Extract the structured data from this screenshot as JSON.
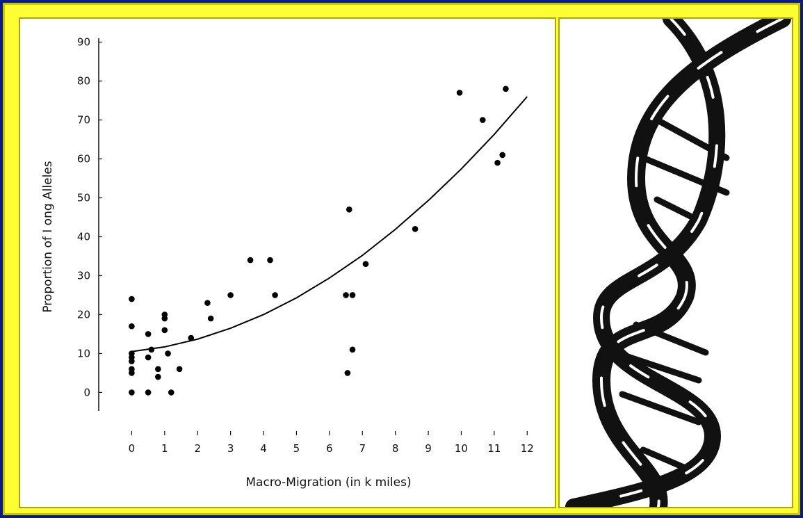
{
  "chart_data": {
    "type": "scatter",
    "xlabel": "Macro-Migration (in k miles)",
    "ylabel": "Proportion of I ong Alleles",
    "xlim": [
      -1,
      12.1
    ],
    "ylim": [
      -11,
      91
    ],
    "xticks": [
      0,
      1,
      2,
      3,
      4,
      5,
      6,
      7,
      8,
      9,
      10,
      11,
      12
    ],
    "yticks": [
      0,
      10,
      20,
      30,
      40,
      50,
      60,
      70,
      80,
      90
    ],
    "series": [
      {
        "type": "scatter",
        "color": "#000000",
        "x": [
          0,
          0,
          0,
          0,
          0,
          0,
          0,
          0,
          0.5,
          0.5,
          0.5,
          0.6,
          0.8,
          0.8,
          1,
          1,
          1,
          1.1,
          1.2,
          1.45,
          1.8,
          2.3,
          2.4,
          3,
          3.6,
          4.2,
          4.35,
          6.5,
          6.6,
          6.55,
          6.7,
          6.7,
          7.1,
          8.6,
          9.95,
          10.65,
          11.1,
          11.25,
          11.35
        ],
        "values": [
          24,
          17,
          10,
          9,
          8,
          6,
          5,
          0,
          15,
          9,
          0,
          11,
          6,
          4,
          20,
          19,
          16,
          10,
          0,
          6,
          14,
          23,
          19,
          25,
          34,
          34,
          25,
          25,
          47,
          5,
          25,
          11,
          33,
          42,
          77,
          70,
          59,
          61,
          78
        ]
      },
      {
        "type": "line",
        "color": "#000000",
        "x": [
          0,
          1,
          2,
          3,
          4,
          5,
          6,
          7,
          8,
          9,
          10,
          11,
          12
        ],
        "values": [
          10.5,
          11.7,
          13.7,
          16.5,
          20.0,
          24.3,
          29.4,
          35.2,
          41.9,
          49.3,
          57.4,
          66.3,
          76.0
        ]
      }
    ]
  }
}
